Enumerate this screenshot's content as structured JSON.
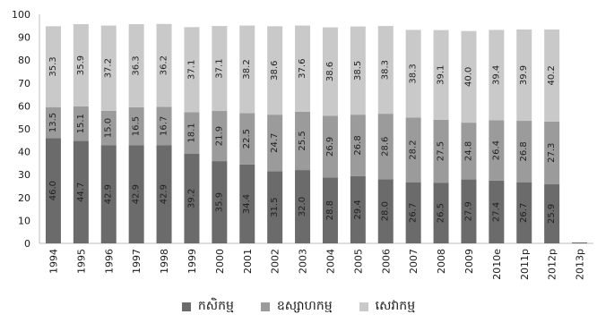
{
  "title_fragment": "",
  "chart_data": {
    "type": "bar",
    "stacked": true,
    "categories": [
      "1994",
      "1995",
      "1996",
      "1997",
      "1998",
      "1999",
      "2000",
      "2001",
      "2002",
      "2003",
      "2004",
      "2005",
      "2006",
      "2007",
      "2008",
      "2009",
      "2010e",
      "2011p",
      "2012p",
      "2013p"
    ],
    "series": [
      {
        "name": "កសិកម្ម",
        "color": "#6b6b6b",
        "values": [
          46.0,
          44.7,
          42.9,
          42.9,
          42.9,
          39.2,
          35.9,
          34.4,
          31.5,
          32.0,
          28.8,
          29.4,
          28.0,
          26.7,
          26.5,
          27.9,
          27.4,
          26.7,
          25.9,
          null
        ],
        "labels": [
          "46.0",
          "44.7",
          "42.9",
          "42.9",
          "42.9",
          "39.2",
          "35.9",
          "34.4",
          "31.5",
          "32.0",
          "28.8",
          "29.4",
          "28.0",
          "26.7",
          "26.5",
          "27.9",
          "27.4",
          "26.7",
          "25.9",
          ""
        ]
      },
      {
        "name": "ឧស្សាហកម្ម",
        "color": "#9b9b9b",
        "values": [
          13.5,
          15.1,
          15.0,
          16.5,
          16.7,
          18.1,
          21.9,
          22.5,
          24.7,
          25.5,
          26.9,
          26.8,
          28.6,
          28.2,
          27.5,
          24.8,
          26.4,
          26.8,
          27.3,
          null
        ],
        "labels": [
          "13.5",
          "15.1",
          "15.0",
          "16.5",
          "16.7",
          "18.1",
          "21.9",
          "22.5",
          "24.7",
          "25.5",
          "26.9",
          "26.8",
          "28.6",
          "28.2",
          "27.5",
          "24.8",
          "26.4",
          "26.8",
          "27.3",
          ""
        ]
      },
      {
        "name": "សេវាកម្ម",
        "color": "#c9c9c9",
        "values": [
          35.3,
          35.9,
          37.2,
          36.3,
          36.2,
          37.1,
          37.1,
          38.2,
          38.6,
          37.6,
          38.6,
          38.5,
          38.3,
          38.3,
          39.1,
          40.0,
          39.4,
          39.9,
          40.2,
          null
        ],
        "labels": [
          "35.3",
          "35.9",
          "37.2",
          "36.3",
          "36.2",
          "37.1",
          "37.1",
          "38.2",
          "38.6",
          "37.6",
          "38.6",
          "38.5",
          "38.3",
          "38.3",
          "39.1",
          "40.0",
          "39.4",
          "39.9",
          "40.2",
          ""
        ]
      }
    ],
    "ylim": [
      0,
      100
    ],
    "yticks": [
      "0",
      "10",
      "20",
      "30",
      "40",
      "50",
      "60",
      "70",
      "80",
      "90",
      "100"
    ],
    "xlabel": "",
    "ylabel": "",
    "legend_position": "bottom",
    "grid": false
  }
}
